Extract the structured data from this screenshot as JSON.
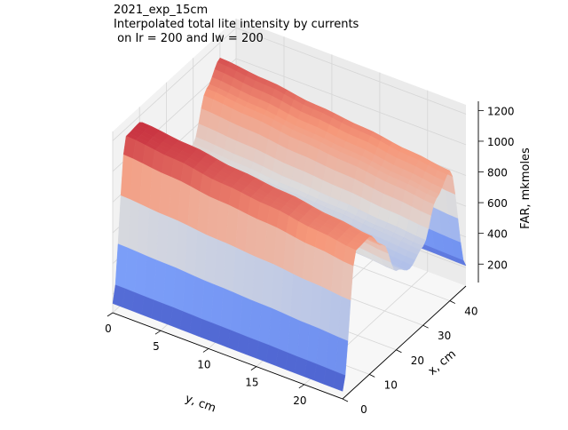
{
  "chart_data": {
    "type": "surface",
    "title_lines": [
      "2021_exp_15cm",
      "Interpolated total lite intensity by currents",
      " on Ir = 200 and Iw = 200"
    ],
    "xlabel": "y, cm",
    "ylabel": "x, cm",
    "zlabel": "FAR, mkmoles",
    "x_axis": {
      "name": "y",
      "range": [
        0,
        24
      ],
      "ticks": [
        0,
        5,
        10,
        15,
        20
      ]
    },
    "y_axis": {
      "name": "x",
      "range": [
        0,
        46
      ],
      "ticks": [
        0,
        10,
        20,
        30,
        40
      ]
    },
    "z_axis": {
      "range": [
        80,
        1260
      ],
      "ticks": [
        200,
        400,
        600,
        800,
        1000,
        1200
      ]
    },
    "surface": {
      "description_free": false,
      "profile_x": [
        0,
        5,
        10,
        15,
        20,
        25,
        30,
        35,
        40,
        46
      ],
      "profile_z": [
        140,
        1150,
        1160,
        1000,
        700,
        620,
        700,
        980,
        1100,
        240
      ],
      "decay_along_y": [
        1.0,
        0.97,
        0.93,
        0.9,
        0.86,
        0.83
      ],
      "y_samples": [
        0,
        5,
        10,
        15,
        20,
        24
      ]
    },
    "colormap": "coolwarm",
    "colors": {
      "low": "#3b4cc0",
      "mid": "#dddcdc",
      "high": "#b40426"
    }
  }
}
